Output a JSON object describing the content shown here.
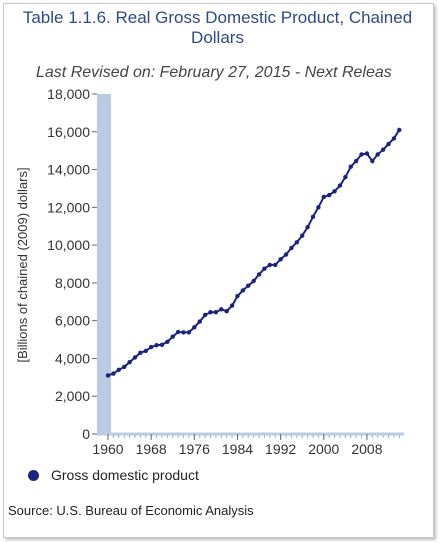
{
  "chart_data": {
    "type": "line",
    "title": "Table 1.1.6. Real Gross Domestic Product, Chained Dollars",
    "subtitle": "Last Revised on: February 27, 2015 - Next Releas",
    "ylabel": "[Billions of chained (2009) dollars]",
    "xlabel": "",
    "ylim": [
      0,
      18000
    ],
    "xlim": [
      1960,
      2014.5
    ],
    "yticks": [
      "0",
      "2,000",
      "4,000",
      "6,000",
      "8,000",
      "10,000",
      "12,000",
      "14,000",
      "16,000",
      "18,000"
    ],
    "yticks_values": [
      0,
      2000,
      4000,
      6000,
      8000,
      10000,
      12000,
      14000,
      16000,
      18000
    ],
    "xticks": [
      "1960",
      "1968",
      "1976",
      "1984",
      "1992",
      "2000",
      "2008"
    ],
    "xticks_values": [
      1960,
      1968,
      1976,
      1984,
      1992,
      2000,
      2008
    ],
    "grid": false,
    "series": [
      {
        "name": "Gross domestic product",
        "color": "#1a237e",
        "x": [
          1960,
          1961,
          1962,
          1963,
          1964,
          1965,
          1966,
          1967,
          1968,
          1969,
          1970,
          1971,
          1972,
          1973,
          1974,
          1975,
          1976,
          1977,
          1978,
          1979,
          1980,
          1981,
          1982,
          1983,
          1984,
          1985,
          1986,
          1987,
          1988,
          1989,
          1990,
          1991,
          1992,
          1993,
          1994,
          1995,
          1996,
          1997,
          1998,
          1999,
          2000,
          2001,
          2002,
          2003,
          2004,
          2005,
          2006,
          2007,
          2008,
          2009,
          2010,
          2011,
          2012,
          2013,
          2014
        ],
        "values": [
          3100,
          3200,
          3400,
          3550,
          3800,
          4050,
          4300,
          4400,
          4600,
          4700,
          4720,
          4880,
          5150,
          5400,
          5380,
          5380,
          5650,
          5950,
          6300,
          6450,
          6450,
          6600,
          6500,
          6800,
          7300,
          7600,
          7850,
          8100,
          8450,
          8750,
          8950,
          8950,
          9250,
          9500,
          9850,
          10150,
          10500,
          10950,
          11500,
          12000,
          12550,
          12650,
          12850,
          13150,
          13600,
          14150,
          14450,
          14800,
          14850,
          14450,
          14800,
          15050,
          15350,
          15650,
          16100
        ]
      }
    ]
  },
  "legend": {
    "label": "Gross domestic product"
  },
  "source": "Source: U.S. Bureau of Economic  Analysis"
}
